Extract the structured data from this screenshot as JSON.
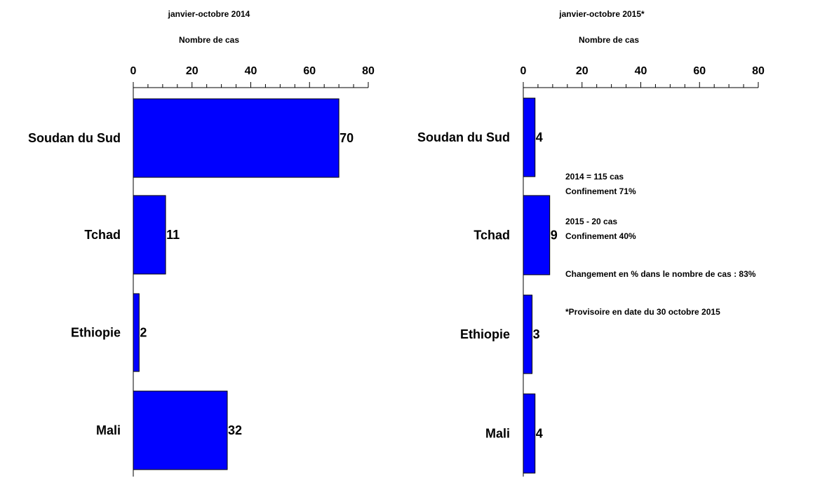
{
  "colors": {
    "bar": "#0000ff",
    "axis": "#000000",
    "background": "#ffffff"
  },
  "chart_data": [
    {
      "type": "bar",
      "orientation": "horizontal",
      "title": "janvier-octobre 2014",
      "xlabel": "Nombre de cas",
      "categories": [
        "Soudan du Sud",
        "Tchad",
        "Ethiopie",
        "Mali"
      ],
      "values": [
        70,
        11,
        2,
        32
      ],
      "data_labels": [
        "70",
        "11",
        "2",
        "32"
      ],
      "xlim": [
        0,
        80
      ],
      "x_ticks": [
        "0",
        "20",
        "40",
        "60",
        "80"
      ],
      "x_axis_position": "top",
      "grid": false
    },
    {
      "type": "bar",
      "orientation": "horizontal",
      "title": "janvier-octobre 2015*",
      "xlabel": "Nombre de cas",
      "categories": [
        "Soudan du Sud",
        "Tchad",
        "Ethiopie",
        "Mali"
      ],
      "values": [
        4,
        9,
        3,
        4
      ],
      "data_labels": [
        "4",
        "9",
        "3",
        "4"
      ],
      "xlim": [
        0,
        80
      ],
      "x_ticks": [
        "0",
        "20",
        "40",
        "60",
        "80"
      ],
      "x_axis_position": "top",
      "grid": false
    }
  ],
  "annotations": {
    "line1": "2014 = 115 cas",
    "line2": "Confinement 71%",
    "line3": "2015 - 20 cas",
    "line4": "Confinement 40%",
    "line5": "Changement en % dans le nombre de cas : 83%",
    "line6": "*Provisoire en date du 30 octobre 2015"
  }
}
